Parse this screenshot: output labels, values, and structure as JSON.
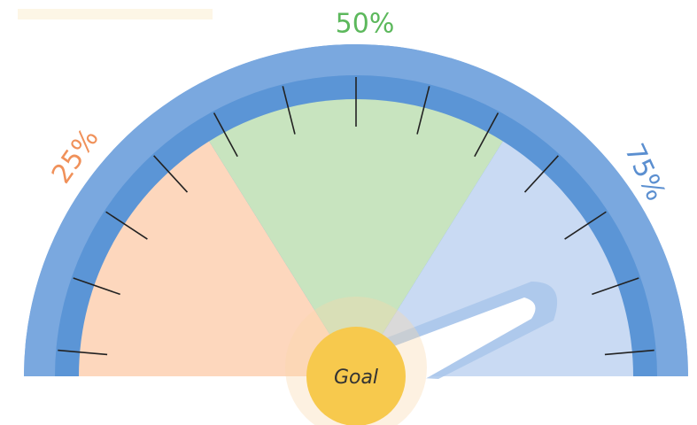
{
  "gauge": {
    "labels": [
      "25%",
      "50%",
      "75%"
    ],
    "center_label": "Goal"
  }
}
